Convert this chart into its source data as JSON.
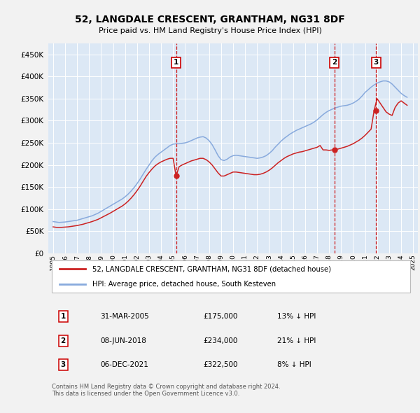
{
  "title": "52, LANGDALE CRESCENT, GRANTHAM, NG31 8DF",
  "subtitle": "Price paid vs. HM Land Registry's House Price Index (HPI)",
  "ytick_values": [
    0,
    50000,
    100000,
    150000,
    200000,
    250000,
    300000,
    350000,
    400000,
    450000
  ],
  "ylim": [
    0,
    475000
  ],
  "xlim_start": 1994.6,
  "xlim_end": 2025.4,
  "plot_bg_color": "#dce8f5",
  "fig_bg_color": "#f2f2f2",
  "grid_color": "#ffffff",
  "sale_dates": [
    2005.25,
    2018.44,
    2021.92
  ],
  "sale_prices": [
    175000,
    234000,
    322500
  ],
  "sale_labels": [
    "1",
    "2",
    "3"
  ],
  "legend_label_red": "52, LANGDALE CRESCENT, GRANTHAM, NG31 8DF (detached house)",
  "legend_label_blue": "HPI: Average price, detached house, South Kesteven",
  "table_data": [
    {
      "num": "1",
      "date": "31-MAR-2005",
      "price": "£175,000",
      "pct": "13% ↓ HPI"
    },
    {
      "num": "2",
      "date": "08-JUN-2018",
      "price": "£234,000",
      "pct": "21% ↓ HPI"
    },
    {
      "num": "3",
      "date": "06-DEC-2021",
      "price": "£322,500",
      "pct": "8% ↓ HPI"
    }
  ],
  "footer": "Contains HM Land Registry data © Crown copyright and database right 2024.\nThis data is licensed under the Open Government Licence v3.0.",
  "hpi_years": [
    1995.0,
    1995.25,
    1995.5,
    1995.75,
    1996.0,
    1996.25,
    1996.5,
    1996.75,
    1997.0,
    1997.25,
    1997.5,
    1997.75,
    1998.0,
    1998.25,
    1998.5,
    1998.75,
    1999.0,
    1999.25,
    1999.5,
    1999.75,
    2000.0,
    2000.25,
    2000.5,
    2000.75,
    2001.0,
    2001.25,
    2001.5,
    2001.75,
    2002.0,
    2002.25,
    2002.5,
    2002.75,
    2003.0,
    2003.25,
    2003.5,
    2003.75,
    2004.0,
    2004.25,
    2004.5,
    2004.75,
    2005.0,
    2005.25,
    2005.5,
    2005.75,
    2006.0,
    2006.25,
    2006.5,
    2006.75,
    2007.0,
    2007.25,
    2007.5,
    2007.75,
    2008.0,
    2008.25,
    2008.5,
    2008.75,
    2009.0,
    2009.25,
    2009.5,
    2009.75,
    2010.0,
    2010.25,
    2010.5,
    2010.75,
    2011.0,
    2011.25,
    2011.5,
    2011.75,
    2012.0,
    2012.25,
    2012.5,
    2012.75,
    2013.0,
    2013.25,
    2013.5,
    2013.75,
    2014.0,
    2014.25,
    2014.5,
    2014.75,
    2015.0,
    2015.25,
    2015.5,
    2015.75,
    2016.0,
    2016.25,
    2016.5,
    2016.75,
    2017.0,
    2017.25,
    2017.5,
    2017.75,
    2018.0,
    2018.25,
    2018.5,
    2018.75,
    2019.0,
    2019.25,
    2019.5,
    2019.75,
    2020.0,
    2020.25,
    2020.5,
    2020.75,
    2021.0,
    2021.25,
    2021.5,
    2021.75,
    2022.0,
    2022.25,
    2022.5,
    2022.75,
    2023.0,
    2023.25,
    2023.5,
    2023.75,
    2024.0,
    2024.25,
    2024.5
  ],
  "hpi_values": [
    72000,
    71000,
    70000,
    70500,
    71000,
    72000,
    73000,
    74000,
    75000,
    77000,
    79000,
    81000,
    83000,
    85000,
    88000,
    91000,
    95000,
    99000,
    103000,
    107000,
    111000,
    115000,
    119000,
    123000,
    128000,
    134000,
    141000,
    149000,
    158000,
    168000,
    179000,
    190000,
    200000,
    210000,
    218000,
    224000,
    229000,
    234000,
    239000,
    244000,
    247000,
    248000,
    248000,
    249000,
    250000,
    252000,
    255000,
    258000,
    261000,
    263000,
    264000,
    261000,
    255000,
    246000,
    234000,
    221000,
    212000,
    210000,
    213000,
    218000,
    221000,
    222000,
    221000,
    220000,
    219000,
    218000,
    217000,
    216000,
    215000,
    216000,
    218000,
    221000,
    226000,
    232000,
    240000,
    247000,
    254000,
    260000,
    265000,
    270000,
    274000,
    278000,
    281000,
    284000,
    287000,
    290000,
    293000,
    297000,
    302000,
    308000,
    314000,
    319000,
    323000,
    326000,
    329000,
    331000,
    333000,
    334000,
    335000,
    337000,
    340000,
    344000,
    349000,
    356000,
    364000,
    370000,
    376000,
    381000,
    385000,
    388000,
    390000,
    390000,
    388000,
    383000,
    376000,
    369000,
    362000,
    357000,
    353000
  ],
  "red_years": [
    1995.0,
    1995.25,
    1995.5,
    1995.75,
    1996.0,
    1996.25,
    1996.5,
    1996.75,
    1997.0,
    1997.25,
    1997.5,
    1997.75,
    1998.0,
    1998.25,
    1998.5,
    1998.75,
    1999.0,
    1999.25,
    1999.5,
    1999.75,
    2000.0,
    2000.25,
    2000.5,
    2000.75,
    2001.0,
    2001.25,
    2001.5,
    2001.75,
    2002.0,
    2002.25,
    2002.5,
    2002.75,
    2003.0,
    2003.25,
    2003.5,
    2003.75,
    2004.0,
    2004.25,
    2004.5,
    2004.75,
    2005.0,
    2005.25,
    2005.5,
    2005.75,
    2006.0,
    2006.25,
    2006.5,
    2006.75,
    2007.0,
    2007.25,
    2007.5,
    2007.75,
    2008.0,
    2008.25,
    2008.5,
    2008.75,
    2009.0,
    2009.25,
    2009.5,
    2009.75,
    2010.0,
    2010.25,
    2010.5,
    2010.75,
    2011.0,
    2011.25,
    2011.5,
    2011.75,
    2012.0,
    2012.25,
    2012.5,
    2012.75,
    2013.0,
    2013.25,
    2013.5,
    2013.75,
    2014.0,
    2014.25,
    2014.5,
    2014.75,
    2015.0,
    2015.25,
    2015.5,
    2015.75,
    2016.0,
    2016.25,
    2016.5,
    2016.75,
    2017.0,
    2017.25,
    2017.5,
    2017.75,
    2018.0,
    2018.25,
    2018.5,
    2018.75,
    2019.0,
    2019.25,
    2019.5,
    2019.75,
    2020.0,
    2020.25,
    2020.5,
    2020.75,
    2021.0,
    2021.25,
    2021.5,
    2021.75,
    2022.0,
    2022.25,
    2022.5,
    2022.75,
    2023.0,
    2023.25,
    2023.5,
    2023.75,
    2024.0,
    2024.25,
    2024.5
  ],
  "red_values": [
    60000,
    59000,
    58500,
    59000,
    59500,
    60000,
    61000,
    62000,
    63000,
    64500,
    66000,
    68000,
    70000,
    72000,
    74500,
    77000,
    80500,
    84000,
    87500,
    91000,
    95000,
    99000,
    103000,
    107000,
    112000,
    118000,
    125000,
    133000,
    142000,
    152000,
    163000,
    174000,
    183000,
    191000,
    198000,
    203000,
    207000,
    210000,
    213000,
    215000,
    215000,
    175000,
    196000,
    200000,
    203000,
    206000,
    209000,
    211000,
    213000,
    215000,
    215000,
    212000,
    207000,
    200000,
    191000,
    182000,
    175000,
    175000,
    178000,
    181000,
    184000,
    184000,
    183000,
    182000,
    181000,
    180000,
    179000,
    178000,
    178000,
    179000,
    181000,
    184000,
    188000,
    193000,
    199000,
    205000,
    210000,
    215000,
    219000,
    222000,
    225000,
    227000,
    229000,
    230000,
    232000,
    234000,
    236000,
    238000,
    240000,
    244000,
    234000,
    234000,
    233000,
    234000,
    235000,
    236000,
    238000,
    240000,
    242000,
    245000,
    248000,
    252000,
    256000,
    261000,
    267000,
    274000,
    281000,
    323000,
    350000,
    340000,
    330000,
    320000,
    315000,
    312000,
    330000,
    340000,
    345000,
    340000,
    335000
  ]
}
